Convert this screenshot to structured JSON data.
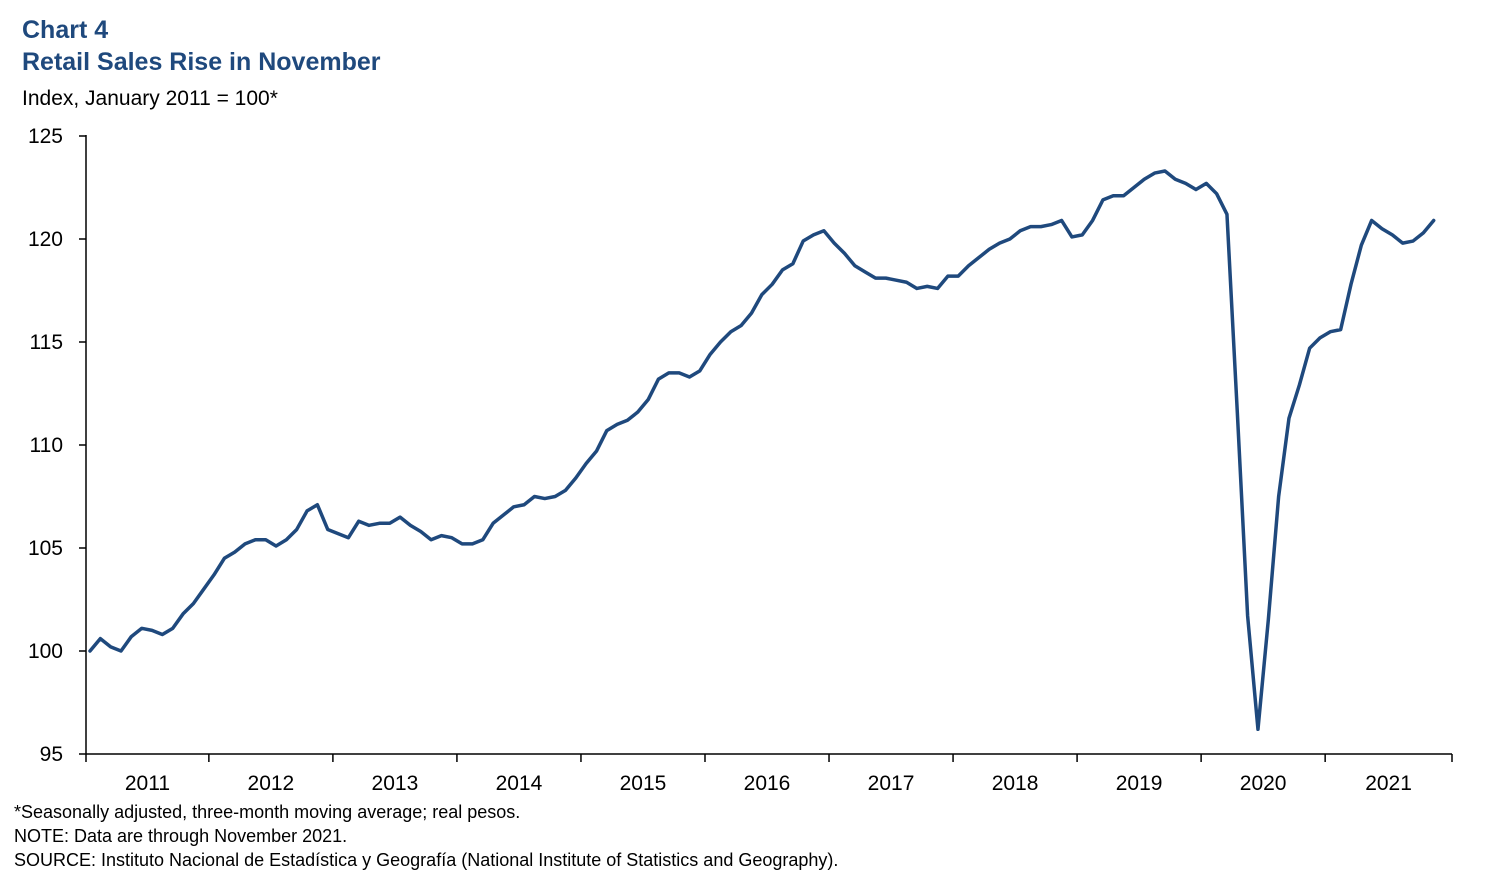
{
  "header": {
    "chart_number": "Chart 4",
    "title": "Retail Sales Rise in November",
    "subtitle": "Index, January 2011 = 100*"
  },
  "notes": {
    "footnote": "*Seasonally adjusted, three-month moving average; real pesos.",
    "note": "NOTE: Data are through November 2021.",
    "source": "SOURCE: Instituto Nacional de Estadística y Geografía (National Institute of Statistics and Geography)."
  },
  "colors": {
    "line": "#1f497d",
    "title": "#1f497d",
    "axis": "#000000"
  },
  "chart_data": {
    "type": "line",
    "title": "Retail Sales Rise in November",
    "ylabel": "Index, January 2011 = 100*",
    "xlabel": "",
    "ylim": [
      95,
      125
    ],
    "yticks": [
      95,
      100,
      105,
      110,
      115,
      120,
      125
    ],
    "xlim": [
      "2011-01",
      "2021-11"
    ],
    "xtick_labels": [
      "2011",
      "2012",
      "2013",
      "2014",
      "2015",
      "2016",
      "2017",
      "2018",
      "2019",
      "2020",
      "2021"
    ],
    "grid": false,
    "legend": "none",
    "series": [
      {
        "x_start": "2011-01",
        "frequency": "monthly",
        "values": [
          100.0,
          100.6,
          100.2,
          100.0,
          100.7,
          101.1,
          101.0,
          100.8,
          101.1,
          101.8,
          102.3,
          103.0,
          103.7,
          104.5,
          104.8,
          105.2,
          105.4,
          105.4,
          105.1,
          105.4,
          105.9,
          106.8,
          107.1,
          105.9,
          105.7,
          105.5,
          106.3,
          106.1,
          106.2,
          106.2,
          106.5,
          106.1,
          105.8,
          105.4,
          105.6,
          105.5,
          105.2,
          105.2,
          105.4,
          106.2,
          106.6,
          107.0,
          107.1,
          107.5,
          107.4,
          107.5,
          107.8,
          108.4,
          109.1,
          109.7,
          110.7,
          111.0,
          111.2,
          111.6,
          112.2,
          113.2,
          113.5,
          113.5,
          113.3,
          113.6,
          114.4,
          115.0,
          115.5,
          115.8,
          116.4,
          117.3,
          117.8,
          118.5,
          118.8,
          119.9,
          120.2,
          120.4,
          119.8,
          119.3,
          118.7,
          118.4,
          118.1,
          118.1,
          118.0,
          117.9,
          117.6,
          117.7,
          117.6,
          118.2,
          118.2,
          118.7,
          119.1,
          119.5,
          119.8,
          120.0,
          120.4,
          120.6,
          120.6,
          120.7,
          120.9,
          120.1,
          120.2,
          120.9,
          121.9,
          122.1,
          122.1,
          122.5,
          122.9,
          123.2,
          123.3,
          122.9,
          122.7,
          122.4,
          122.7,
          122.2,
          121.2,
          111.6,
          101.7,
          96.2,
          101.5,
          107.5,
          111.3,
          112.9,
          114.7,
          115.2,
          115.5,
          115.6,
          117.8,
          119.7,
          120.9,
          120.5,
          120.2,
          119.8,
          119.9,
          120.3,
          120.9
        ]
      }
    ]
  }
}
